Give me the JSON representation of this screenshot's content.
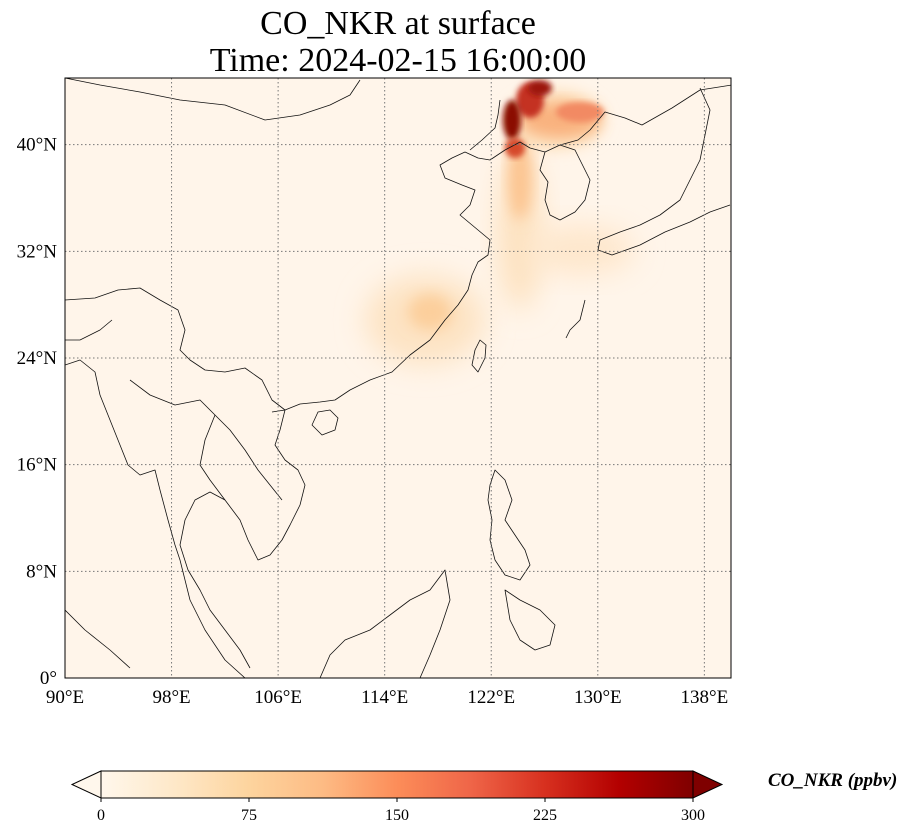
{
  "title": {
    "line1": "CO_NKR at surface",
    "line2": "Time: 2024-02-15 16:00:00"
  },
  "map": {
    "lon_range": [
      90,
      140
    ],
    "lat_range": [
      0,
      45
    ],
    "lon_ticks": [
      {
        "value": 90,
        "label": "90°E"
      },
      {
        "value": 98,
        "label": "98°E"
      },
      {
        "value": 106,
        "label": "106°E"
      },
      {
        "value": 114,
        "label": "114°E"
      },
      {
        "value": 122,
        "label": "122°E"
      },
      {
        "value": 130,
        "label": "130°E"
      },
      {
        "value": 138,
        "label": "138°E"
      }
    ],
    "lat_ticks": [
      {
        "value": 0,
        "label": "0°"
      },
      {
        "value": 8,
        "label": "8°N"
      },
      {
        "value": 16,
        "label": "16°N"
      },
      {
        "value": 24,
        "label": "24°N"
      },
      {
        "value": 32,
        "label": "32°N"
      },
      {
        "value": 40,
        "label": "40°N"
      }
    ],
    "gridlines": true,
    "background_color": "#fff5ea"
  },
  "colorbar": {
    "label": "CO_NKR (ppbv)",
    "colormap": "OrRd",
    "range": [
      0,
      300
    ],
    "extend": "both",
    "ticks": [
      {
        "value": 0,
        "label": "0"
      },
      {
        "value": 75,
        "label": "75"
      },
      {
        "value": 150,
        "label": "150"
      },
      {
        "value": 225,
        "label": "225"
      },
      {
        "value": 300,
        "label": "300"
      }
    ],
    "colors": [
      "#fff7ec",
      "#fee8c8",
      "#fdd49e",
      "#fdbb84",
      "#fc8d59",
      "#ef6548",
      "#d7301f",
      "#b30000",
      "#7f0000"
    ]
  }
}
